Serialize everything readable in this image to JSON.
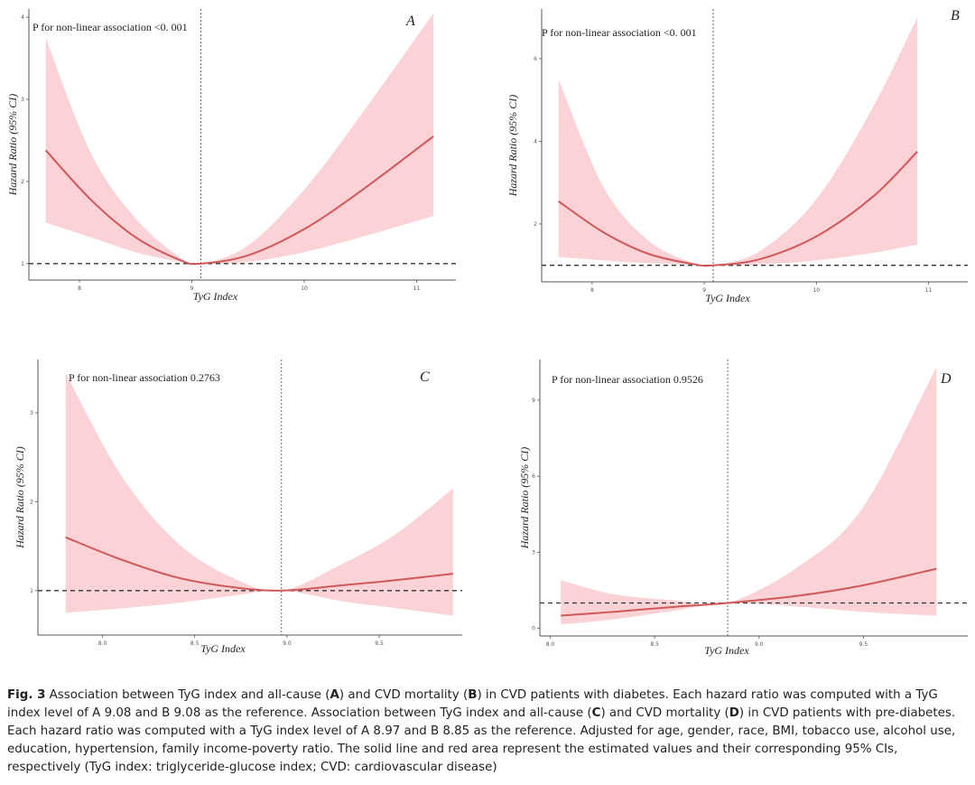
{
  "chart_data": [
    {
      "type": "line",
      "panel": "A",
      "title": "P for non-linear association <0. 001",
      "xlabel": "TyG Index",
      "ylabel": "Hazard Ratio (95% CI)",
      "xlim": [
        7.55,
        11.35
      ],
      "ylim": [
        0.8,
        4.1
      ],
      "xticks": [
        "8",
        "9",
        "10",
        "11"
      ],
      "xtick_values": [
        8,
        9,
        10,
        11
      ],
      "yticks": [
        "1",
        "2",
        "3",
        "4"
      ],
      "ytick_values": [
        1,
        2,
        3,
        4
      ],
      "reference_x": 9.08,
      "reference_y": 1,
      "x": [
        7.7,
        8.1,
        8.5,
        8.9,
        9.08,
        9.5,
        10.0,
        10.5,
        11.15
      ],
      "estimate": [
        2.38,
        1.78,
        1.32,
        1.04,
        1.0,
        1.1,
        1.42,
        1.88,
        2.55
      ],
      "lower": [
        1.5,
        1.32,
        1.14,
        1.02,
        1.0,
        1.02,
        1.14,
        1.32,
        1.58
      ],
      "upper": [
        3.75,
        2.35,
        1.55,
        1.07,
        1.0,
        1.22,
        1.9,
        2.8,
        4.05
      ]
    },
    {
      "type": "line",
      "panel": "B",
      "title": "P for non-linear association <0. 001",
      "xlabel": "TyG Index",
      "ylabel": "Hazard Ratio (95% CI)",
      "xlim": [
        7.55,
        11.35
      ],
      "ylim": [
        0.6,
        7.2
      ],
      "xticks": [
        "8",
        "9",
        "10",
        "11"
      ],
      "xtick_values": [
        8,
        9,
        10,
        11
      ],
      "yticks": [
        "2",
        "4",
        "6"
      ],
      "ytick_values": [
        2,
        4,
        6
      ],
      "reference_x": 9.08,
      "reference_y": 1,
      "x": [
        7.7,
        8.1,
        8.5,
        8.9,
        9.08,
        9.5,
        10.0,
        10.5,
        10.9
      ],
      "estimate": [
        2.55,
        1.8,
        1.28,
        1.03,
        1.0,
        1.15,
        1.7,
        2.65,
        3.75
      ],
      "lower": [
        1.2,
        1.12,
        1.05,
        1.01,
        1.0,
        1.02,
        1.12,
        1.3,
        1.5
      ],
      "upper": [
        5.5,
        2.9,
        1.6,
        1.06,
        1.0,
        1.35,
        2.6,
        4.8,
        7.0
      ]
    },
    {
      "type": "line",
      "panel": "C",
      "title": "P for non-linear association 0.2763",
      "xlabel": "TyG Index",
      "ylabel": "Hazard Ratio (95% CI)",
      "xlim": [
        7.65,
        9.95
      ],
      "ylim": [
        0.5,
        3.6
      ],
      "xticks": [
        "8.0",
        "8.5",
        "9.0",
        "9.5"
      ],
      "xtick_values": [
        8.0,
        8.5,
        9.0,
        9.5
      ],
      "yticks": [
        "1",
        "2",
        "3"
      ],
      "ytick_values": [
        1,
        2,
        3
      ],
      "reference_x": 8.97,
      "reference_y": 1,
      "x": [
        7.8,
        8.1,
        8.4,
        8.7,
        8.97,
        9.3,
        9.6,
        9.9
      ],
      "estimate": [
        1.6,
        1.35,
        1.15,
        1.04,
        1.0,
        1.06,
        1.12,
        1.19
      ],
      "lower": [
        0.75,
        0.8,
        0.86,
        0.94,
        1.0,
        0.88,
        0.8,
        0.72
      ],
      "upper": [
        3.45,
        2.3,
        1.55,
        1.15,
        1.0,
        1.3,
        1.65,
        2.15
      ]
    },
    {
      "type": "line",
      "panel": "D",
      "title": "P for non-linear association 0.9526",
      "xlabel": "TyG Index",
      "ylabel": "Hazard Ratio (95% CI)",
      "xlim": [
        7.95,
        10.0
      ],
      "ylim": [
        -0.3,
        10.6
      ],
      "xticks": [
        "8.0",
        "8.5",
        "9.0",
        "9.5"
      ],
      "xtick_values": [
        8.0,
        8.5,
        9.0,
        9.5
      ],
      "yticks": [
        "0",
        "3",
        "6",
        "9"
      ],
      "ytick_values": [
        0,
        3,
        6,
        9
      ],
      "reference_x": 8.85,
      "reference_y": 1,
      "x": [
        8.05,
        8.3,
        8.6,
        8.85,
        9.2,
        9.5,
        9.85
      ],
      "estimate": [
        0.5,
        0.65,
        0.85,
        1.0,
        1.3,
        1.7,
        2.35
      ],
      "lower": [
        0.15,
        0.35,
        0.7,
        1.0,
        0.85,
        0.65,
        0.5
      ],
      "upper": [
        1.9,
        1.35,
        1.1,
        1.0,
        2.5,
        4.8,
        10.3
      ]
    }
  ],
  "caption": {
    "label": "Fig. 3",
    "text_1": " Association between TyG index and all-cause (",
    "bold_a": "A",
    "text_2": ") and CVD mortality (",
    "bold_b": "B",
    "text_3": ") in CVD patients with diabetes. Each hazard ratio was computed with a TyG index level of A 9.08 and B 9.08 as the reference. Association between TyG index and all-cause (",
    "bold_c": "C",
    "text_4": ") and CVD mortality (",
    "bold_d": "D",
    "text_5": ") in CVD patients with pre-diabetes. Each hazard ratio was computed with a TyG index level of A 8.97 and B 8.85 as the reference. Adjusted for age, gender, race, BMI, tobacco use, alcohol use, education, hypertension, family income-poverty ratio. The solid line and red area represent the estimated values and their corresponding 95% CIs, respectively (TyG index: triglyceride-glucose index; CVD: cardiovascular disease)"
  },
  "colors": {
    "band": "#fbd3d6",
    "line": "#d0575a",
    "reference": "#333333",
    "axis": "#555555"
  }
}
